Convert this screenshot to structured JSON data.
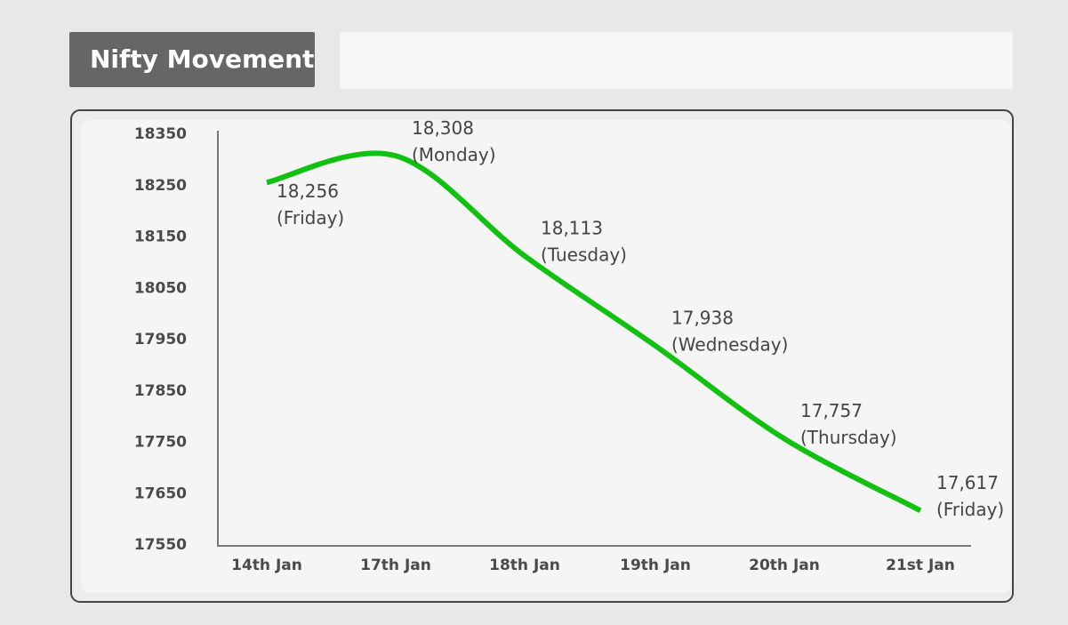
{
  "chart_data": {
    "type": "line",
    "title": "Nifty Movement",
    "categories": [
      "14th Jan",
      "17th Jan",
      "18th Jan",
      "19th Jan",
      "20th Jan",
      "21st Jan"
    ],
    "values": [
      18256,
      18308,
      18113,
      17938,
      17757,
      17617
    ],
    "value_labels": [
      "18,256",
      "18,308",
      "18,113",
      "17,938",
      "17,757",
      "17,617"
    ],
    "day_labels": [
      "(Friday)",
      "(Monday)",
      "(Tuesday)",
      "(Wednesday)",
      "(Thursday)",
      "(Friday)"
    ],
    "color": "#12c012",
    "ylim": [
      17550,
      18350
    ],
    "yticks": [
      17550,
      17650,
      17750,
      17850,
      17950,
      18050,
      18150,
      18250,
      18350
    ],
    "grid": false
  }
}
